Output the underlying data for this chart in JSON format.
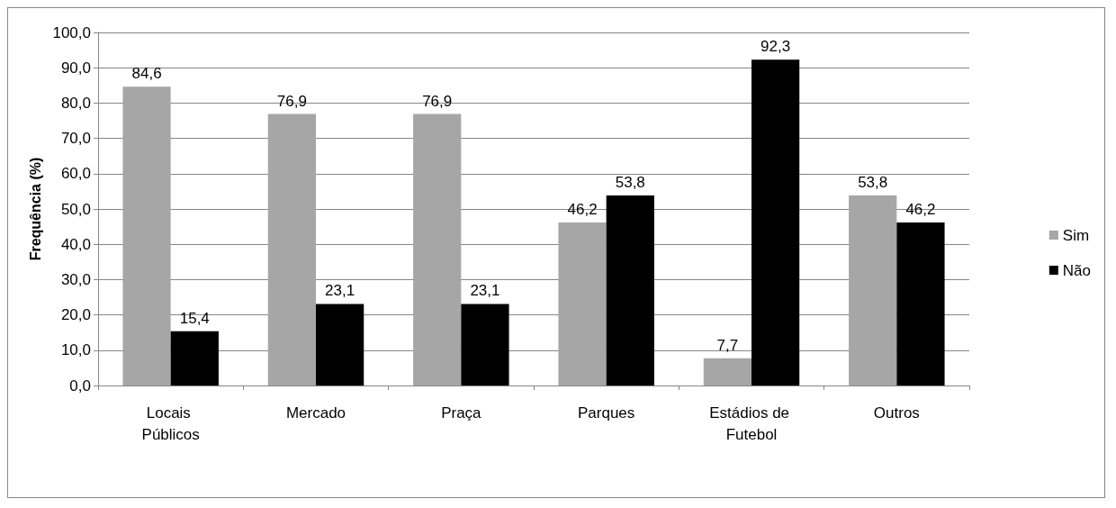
{
  "chart_data": {
    "type": "bar",
    "ylabel": "Frequência (%)",
    "categories": [
      "Locais Públicos",
      "Mercado",
      "Praça",
      "Parques",
      "Estádios de Futebol",
      "Outros"
    ],
    "series": [
      {
        "name": "Sim",
        "color": "#a6a6a6",
        "values": [
          84.6,
          76.9,
          76.9,
          46.2,
          7.7,
          53.8
        ],
        "value_labels": [
          "84,6",
          "76,9",
          "76,9",
          "46,2",
          "7,7",
          "53,8"
        ]
      },
      {
        "name": "Não",
        "color": "#000000",
        "values": [
          15.4,
          23.1,
          23.1,
          53.8,
          92.3,
          46.2
        ],
        "value_labels": [
          "15,4",
          "23,1",
          "23,1",
          "53,8",
          "92,3",
          "46,2"
        ]
      }
    ],
    "ylim": [
      0,
      100
    ],
    "yticks": [
      {
        "value": 0,
        "label": "0,0"
      },
      {
        "value": 10,
        "label": "10,0"
      },
      {
        "value": 20,
        "label": "20,0"
      },
      {
        "value": 30,
        "label": "30,0"
      },
      {
        "value": 40,
        "label": "40,0"
      },
      {
        "value": 50,
        "label": "50,0"
      },
      {
        "value": 60,
        "label": "60,0"
      },
      {
        "value": 70,
        "label": "70,0"
      },
      {
        "value": 80,
        "label": "80,0"
      },
      {
        "value": 90,
        "label": "90,0"
      },
      {
        "value": 100,
        "label": "100,0"
      }
    ],
    "grid": "y",
    "legend": "right"
  }
}
